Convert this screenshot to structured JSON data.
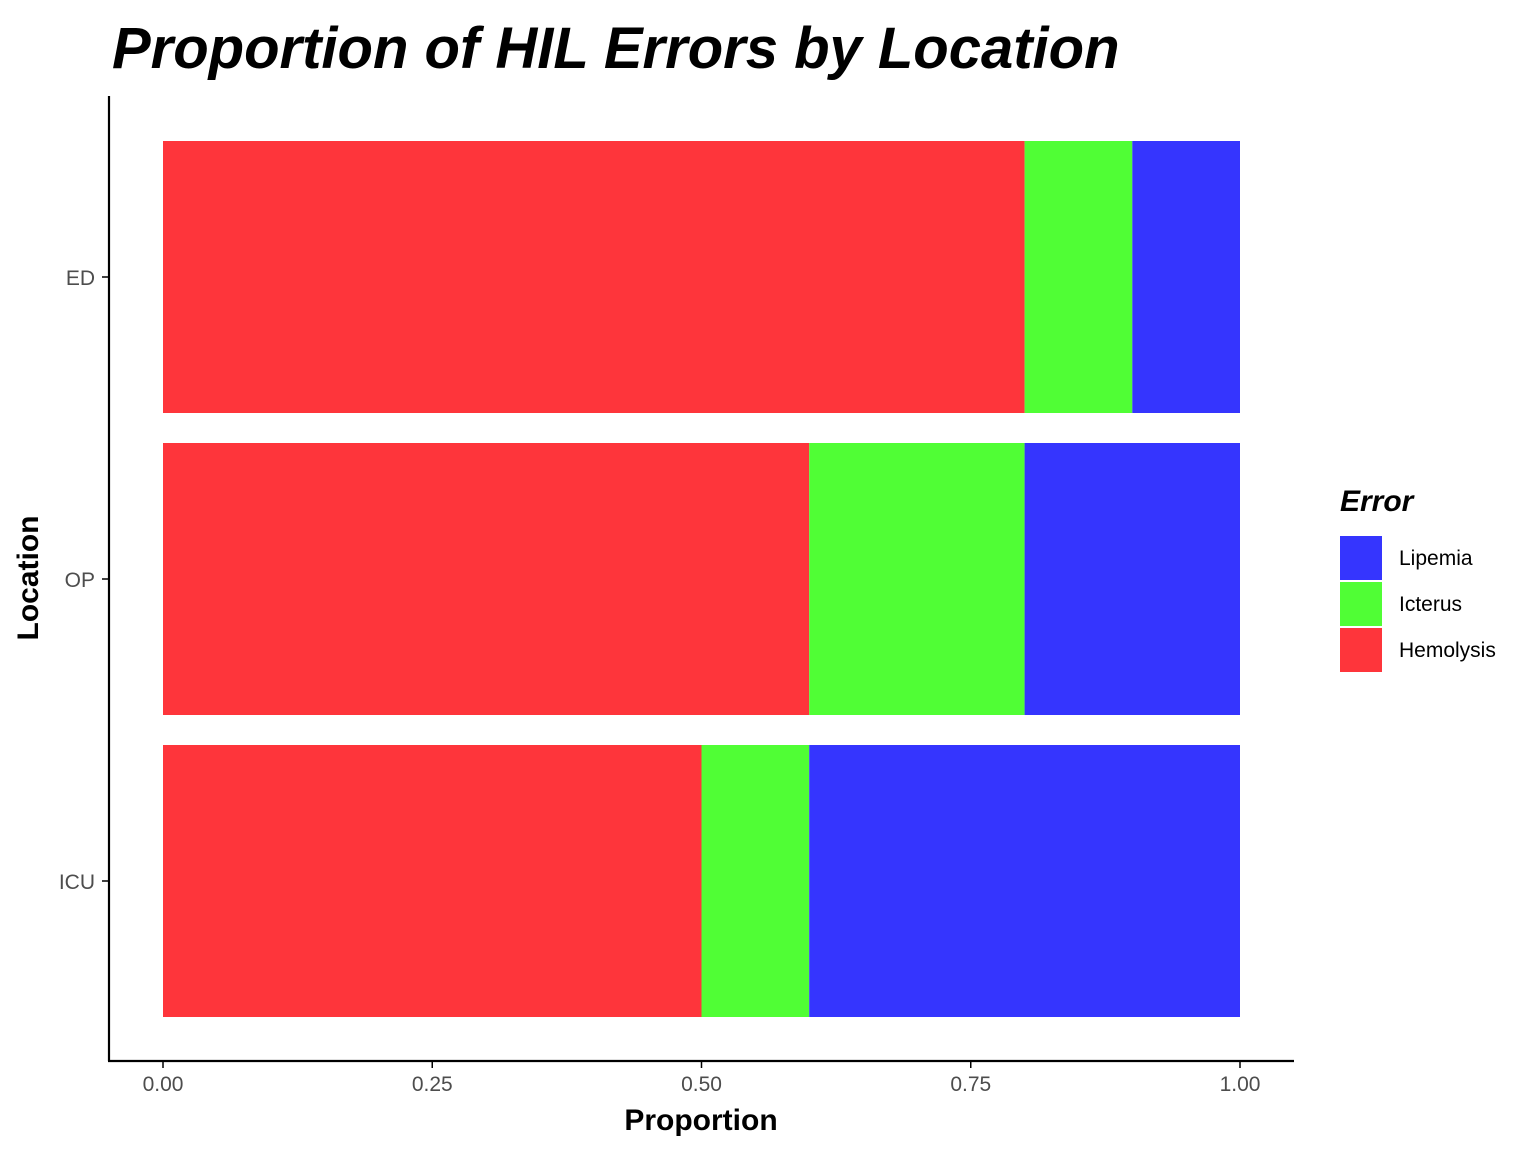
{
  "chart_data": {
    "type": "bar",
    "orientation": "horizontal",
    "stacked": true,
    "title": "Proportion of HIL Errors by Location",
    "xlabel": "Proportion",
    "ylabel": "Location",
    "xlim": [
      0,
      1
    ],
    "x_ticks": [
      "0.00",
      "0.25",
      "0.50",
      "0.75",
      "1.00"
    ],
    "categories": [
      "ED",
      "OP",
      "ICU"
    ],
    "series": [
      {
        "name": "Hemolysis",
        "color": "#fe353b",
        "values": [
          0.8,
          0.6,
          0.5
        ]
      },
      {
        "name": "Icterus",
        "color": "#50fe35",
        "values": [
          0.1,
          0.2,
          0.1
        ]
      },
      {
        "name": "Lipemia",
        "color": "#3535fe",
        "values": [
          0.1,
          0.2,
          0.4
        ]
      }
    ],
    "legend": {
      "title": "Error",
      "position": "right",
      "order": [
        "Lipemia",
        "Icterus",
        "Hemolysis"
      ]
    },
    "grid": false
  }
}
